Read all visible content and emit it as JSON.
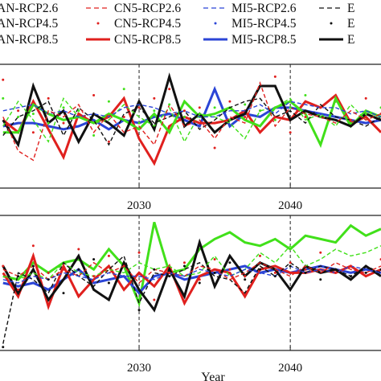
{
  "legend": {
    "entries": [
      {
        "label": "AN-RCP2.6",
        "color": "#111111",
        "style": "dashed-thin"
      },
      {
        "label": "CN5-RCP2.6",
        "color": "#e0201e",
        "style": "dashed-thin"
      },
      {
        "label": "MI5-RCP2.6",
        "color": "#2b45d6",
        "style": "dashed-thin"
      },
      {
        "label": "E",
        "color": "#111111",
        "style": "dashed-thin"
      },
      {
        "label": "AN-RCP4.5",
        "color": "#111111",
        "style": "dotted"
      },
      {
        "label": "CN5-RCP4.5",
        "color": "#e0201e",
        "style": "dotted"
      },
      {
        "label": "MI5-RCP4.5",
        "color": "#2b45d6",
        "style": "dotted"
      },
      {
        "label": "E",
        "color": "#111111",
        "style": "dotted"
      },
      {
        "label": "AN-RCP8.5",
        "color": "#111111",
        "style": "solid-thick"
      },
      {
        "label": "CN5-RCP8.5",
        "color": "#e0201e",
        "style": "solid-thick"
      },
      {
        "label": "MI5-RCP8.5",
        "color": "#2b45d6",
        "style": "solid-thick"
      },
      {
        "label": "E",
        "color": "#111111",
        "style": "solid-thick"
      }
    ]
  },
  "chart_data": [
    {
      "type": "line",
      "xlabel": "",
      "ylabel": "",
      "xlim": [
        2020.8,
        2046
      ],
      "ylim": [
        -2,
        2
      ],
      "x_ticks": [
        {
          "value": 2030,
          "label": "2030"
        },
        {
          "value": 2040,
          "label": "2040"
        }
      ],
      "vlines": [
        2030,
        2040
      ],
      "x": [
        2021,
        2022,
        2023,
        2024,
        2025,
        2026,
        2027,
        2028,
        2029,
        2030,
        2031,
        2032,
        2033,
        2034,
        2035,
        2036,
        2037,
        2038,
        2039,
        2040,
        2041,
        2042,
        2043,
        2044,
        2045,
        2046
      ],
      "series": [
        {
          "color": "#2b45d6",
          "style": "solid",
          "width": 3,
          "values": [
            0.0,
            0.1,
            0.1,
            0.0,
            -0.1,
            0.0,
            0.2,
            -0.1,
            0.2,
            0.1,
            0.3,
            0.4,
            0.2,
            0.0,
            1.2,
            0.0,
            0.4,
            0.3,
            0.6,
            0.6,
            0.5,
            0.4,
            0.3,
            0.2,
            0.1,
            0.2
          ]
        },
        {
          "color": "#e0201e",
          "style": "solid",
          "width": 3,
          "values": [
            0.2,
            -0.2,
            0.8,
            -0.1,
            -1.0,
            0.4,
            0.1,
            0.3,
            0.9,
            -0.4,
            -1.2,
            0.0,
            0.3,
            0.1,
            0.1,
            0.2,
            0.5,
            -0.2,
            0.3,
            0.2,
            0.8,
            0.6,
            1.0,
            0.1,
            0.3,
            -0.2
          ]
        },
        {
          "color": "#41e01a",
          "style": "solid",
          "width": 3,
          "values": [
            -0.2,
            -0.2,
            0.7,
            0.4,
            0.2,
            0.3,
            0.1,
            0.4,
            0.2,
            -0.1,
            0.4,
            -0.2,
            0.8,
            0.3,
            0.4,
            0.6,
            0.2,
            0.0,
            0.6,
            0.8,
            0.4,
            -0.6,
            0.9,
            0.0,
            0.5,
            0.3
          ]
        },
        {
          "color": "#111111",
          "style": "solid",
          "width": 3,
          "values": [
            0.2,
            -0.6,
            1.3,
            0.1,
            0.5,
            -0.5,
            0.4,
            0.1,
            -0.3,
            0.8,
            -0.1,
            1.6,
            0.0,
            0.4,
            -0.2,
            0.2,
            0.4,
            1.3,
            1.3,
            0.2,
            0.5,
            0.3,
            0.2,
            0.0,
            0.4,
            0.2
          ]
        },
        {
          "color": "#41e01a",
          "style": "dashed",
          "width": 1.4,
          "values": [
            0.0,
            0.8,
            0.2,
            -0.5,
            0.9,
            0.3,
            0.1,
            0.2,
            0.7,
            0.3,
            0.0,
            0.6,
            -0.5,
            0.4,
            0.3,
            0.1,
            -0.4,
            0.5,
            0.6,
            0.9,
            0.2,
            0.4,
            0.0,
            0.7,
            0.2,
            0.4
          ]
        },
        {
          "color": "#111111",
          "style": "dashed",
          "width": 1.4,
          "values": [
            -0.3,
            0.3,
            0.5,
            0.8,
            -0.3,
            0.6,
            0.2,
            -0.6,
            0.4,
            0.6,
            0.1,
            0.3,
            0.5,
            -0.1,
            0.2,
            0.6,
            0.8,
            0.9,
            0.3,
            0.5,
            0.1,
            0.7,
            0.3,
            0.2,
            0.0,
            0.3
          ]
        },
        {
          "color": "#2b45d6",
          "style": "dashed",
          "width": 1.4,
          "values": [
            0.5,
            0.6,
            0.7,
            0.4,
            0.5,
            0.3,
            0.4,
            0.3,
            0.6,
            0.7,
            0.6,
            0.4,
            0.5,
            0.3,
            0.3,
            0.5,
            0.5,
            0.7,
            0.4,
            0.8,
            0.7,
            0.6,
            0.6,
            0.4,
            0.5,
            0.3
          ]
        },
        {
          "color": "#e0201e",
          "style": "dashed",
          "width": 1.4,
          "values": [
            0.3,
            -0.8,
            -1.1,
            0.5,
            0.3,
            0.7,
            -0.2,
            0.4,
            -0.2,
            0.0,
            -0.6,
            0.7,
            0.0,
            0.2,
            -0.4,
            0.3,
            0.1,
            1.4,
            0.0,
            0.6,
            0.4,
            0.3,
            0.1,
            0.5,
            0.2,
            0.4
          ]
        },
        {
          "color": "#e0201e",
          "style": "dotted",
          "width": 1.4,
          "values": [
            1.5,
            0.5,
            -0.2,
            0.9,
            0.1,
            0.4,
            1.0,
            -0.5,
            0.3,
            0.6,
            0.9,
            1.2,
            0.5,
            0.6,
            -0.7,
            0.8,
            0.3,
            0.5,
            1.6,
            -0.2,
            0.3,
            0.6,
            0.8,
            0.2,
            0.9,
            0.4
          ]
        },
        {
          "color": "#41e01a",
          "style": "dotted",
          "width": 1.4,
          "values": [
            0.9,
            0.3,
            0.4,
            0.1,
            0.6,
            0.5,
            -0.3,
            0.8,
            1.2,
            0.1,
            0.5,
            0.7,
            0.3,
            0.4,
            0.6,
            0.2,
            0.7,
            0.5,
            0.2,
            0.6,
            1.0,
            0.3,
            0.8,
            0.1,
            0.4,
            0.6
          ]
        }
      ]
    },
    {
      "type": "line",
      "xlabel": "Year",
      "ylabel": "",
      "xlim": [
        2020.8,
        2046
      ],
      "ylim": [
        -2,
        2
      ],
      "x_ticks": [
        {
          "value": 2030,
          "label": "2030"
        },
        {
          "value": 2040,
          "label": "2040"
        }
      ],
      "vlines": [
        2030,
        2040
      ],
      "x": [
        2021,
        2022,
        2023,
        2024,
        2025,
        2026,
        2027,
        2028,
        2029,
        2030,
        2031,
        2032,
        2033,
        2034,
        2035,
        2036,
        2037,
        2038,
        2039,
        2040,
        2041,
        2042,
        2043,
        2044,
        2045,
        2046
      ],
      "series": [
        {
          "color": "#41e01a",
          "style": "solid",
          "width": 3,
          "values": [
            0.2,
            0.1,
            0.6,
            0.3,
            0.6,
            0.7,
            0.4,
            1.0,
            0.5,
            -0.6,
            1.8,
            0.3,
            0.4,
            1.0,
            1.3,
            1.5,
            1.2,
            1.1,
            1.3,
            1.0,
            1.4,
            1.3,
            1.2,
            1.7,
            1.4,
            1.6
          ]
        },
        {
          "color": "#2b45d6",
          "style": "solid",
          "width": 3,
          "values": [
            0.0,
            -0.1,
            0.0,
            -0.2,
            0.1,
            0.4,
            0.0,
            0.1,
            0.2,
            -0.3,
            0.2,
            0.3,
            0.1,
            0.2,
            0.3,
            0.4,
            0.5,
            0.3,
            0.4,
            0.3,
            0.4,
            0.5,
            0.4,
            0.3,
            0.4,
            0.3
          ]
        },
        {
          "color": "#e0201e",
          "style": "solid",
          "width": 3,
          "values": [
            0.3,
            -0.4,
            0.8,
            -0.7,
            0.5,
            -0.4,
            0.1,
            0.5,
            -0.2,
            0.3,
            -0.1,
            0.5,
            -0.6,
            0.2,
            0.4,
            0.3,
            -0.4,
            0.4,
            0.5,
            0.3,
            0.3,
            0.4,
            0.3,
            0.5,
            0.2,
            0.4
          ]
        },
        {
          "color": "#111111",
          "style": "solid",
          "width": 3,
          "values": [
            0.5,
            -0.3,
            0.4,
            -0.5,
            0.1,
            0.8,
            -0.2,
            -0.5,
            0.6,
            -0.2,
            -0.8,
            0.4,
            -0.4,
            1.2,
            -0.1,
            0.8,
            0.2,
            0.6,
            0.4,
            -0.2,
            0.5,
            0.3,
            0.4,
            0.1,
            0.5,
            0.2
          ]
        },
        {
          "color": "#41e01a",
          "style": "dashed",
          "width": 1.4,
          "values": [
            0.2,
            0.1,
            0.3,
            0.1,
            0.6,
            0.3,
            0.2,
            0.4,
            0.3,
            0.6,
            0.4,
            0.5,
            0.2,
            0.3,
            0.8,
            0.2,
            0.4,
            0.9,
            0.6,
            1.1,
            0.5,
            0.7,
            1.0,
            0.8,
            0.9,
            1.1
          ]
        },
        {
          "color": "#111111",
          "style": "dashed",
          "width": 1.4,
          "values": [
            -1.8,
            0.3,
            0.1,
            -0.3,
            0.6,
            0.2,
            -0.1,
            0.4,
            0.8,
            -0.6,
            0.3,
            0.2,
            0.4,
            0.6,
            0.2,
            0.1,
            -0.3,
            0.5,
            0.2,
            0.6,
            0.3,
            0.5,
            0.4,
            0.2,
            0.5,
            0.3
          ]
        },
        {
          "color": "#e0201e",
          "style": "dashed",
          "width": 1.4,
          "values": [
            0.4,
            0.2,
            0.5,
            0.1,
            0.4,
            0.2,
            0.6,
            0.3,
            0.5,
            0.0,
            0.4,
            0.3,
            0.2,
            0.5,
            0.4,
            0.1,
            0.3,
            0.6,
            0.4,
            0.2,
            0.5,
            0.3,
            0.6,
            0.4,
            0.3,
            0.5
          ]
        },
        {
          "color": "#2b45d6",
          "style": "dashed",
          "width": 1.4,
          "values": [
            0.1,
            0.0,
            0.2,
            0.1,
            0.3,
            0.2,
            0.1,
            0.3,
            0.2,
            0.2,
            0.1,
            0.3,
            0.2,
            0.4,
            0.3,
            0.2,
            0.4,
            0.3,
            0.2,
            0.5,
            0.3,
            0.4,
            0.3,
            0.5,
            0.4,
            0.3
          ]
        },
        {
          "color": "#e0201e",
          "style": "dotted",
          "width": 1.4,
          "values": [
            0.5,
            -0.2,
            1.1,
            0.3,
            0.4,
            1.0,
            0.2,
            0.8,
            0.5,
            0.9,
            -0.5,
            0.3,
            0.6,
            0.1,
            0.7,
            0.4,
            0.2,
            0.8,
            0.3,
            0.6,
            0.4,
            0.9,
            0.3,
            0.5,
            0.2,
            0.7
          ]
        },
        {
          "color": "#111111",
          "style": "dotted",
          "width": 1.4,
          "values": [
            -1.9,
            0.2,
            0.5,
            0.1,
            -0.3,
            0.4,
            0.7,
            0.0,
            0.6,
            -0.8,
            0.4,
            0.2,
            0.5,
            0.0,
            0.3,
            0.6,
            0.1,
            0.4,
            0.2,
            0.5,
            0.3,
            0.1,
            0.4,
            0.2,
            0.3,
            0.4
          ]
        }
      ]
    }
  ]
}
